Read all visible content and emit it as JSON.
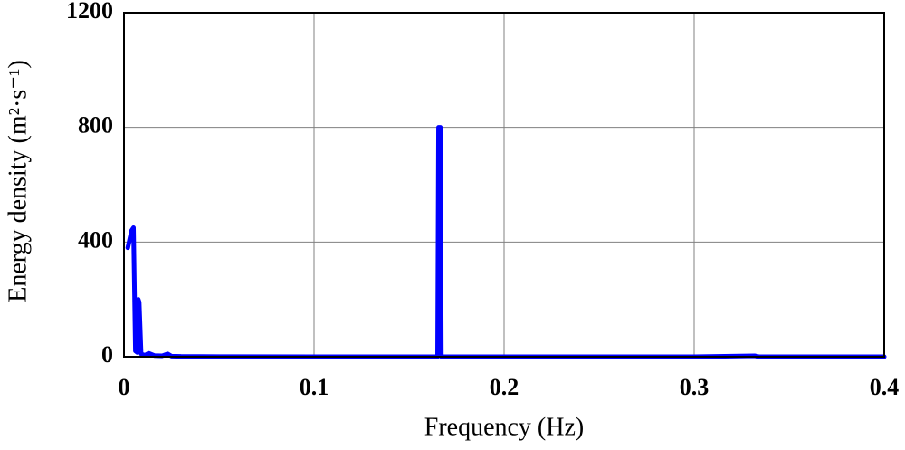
{
  "chart_data": {
    "type": "line",
    "xlabel": "Frequency (Hz)",
    "ylabel": "Energy density (m²·s⁻¹)",
    "xlim": [
      0,
      0.4
    ],
    "xticks": [
      0,
      0.1,
      0.2,
      0.3,
      0.4
    ],
    "ylim": [
      0,
      1200
    ],
    "yticks": [
      0,
      400,
      800,
      1200
    ],
    "grid": true,
    "series": [
      {
        "color": "#0000ff",
        "x": [
          0.002,
          0.004,
          0.005,
          0.006,
          0.007,
          0.0075,
          0.008,
          0.009,
          0.011,
          0.013,
          0.016,
          0.02,
          0.023,
          0.025,
          0.03,
          0.05,
          0.1,
          0.165,
          0.1655,
          0.1665,
          0.167,
          0.2,
          0.3,
          0.332,
          0.334,
          0.4
        ],
        "values": [
          380,
          440,
          450,
          20,
          15,
          200,
          190,
          10,
          5,
          12,
          4,
          3,
          10,
          2,
          1,
          0.5,
          0,
          0,
          800,
          800,
          0,
          0,
          0,
          3,
          0,
          0
        ]
      }
    ]
  }
}
